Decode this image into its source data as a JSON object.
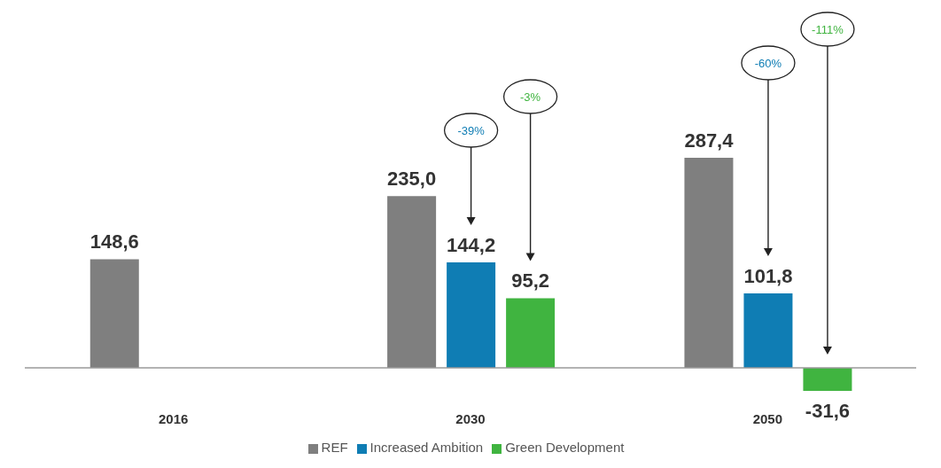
{
  "chart_data": {
    "type": "bar",
    "categories": [
      "2016",
      "2030",
      "2050"
    ],
    "series": [
      {
        "name": "REF",
        "color": "#7f7f7f",
        "values": [
          148.6,
          235.0,
          287.4
        ],
        "value_labels": [
          "148,6",
          "235,0",
          "287,4"
        ]
      },
      {
        "name": "Increased Ambition",
        "color": "#0f7db4",
        "values": [
          null,
          144.2,
          101.8
        ],
        "value_labels": [
          null,
          "144,2",
          "101,8"
        ]
      },
      {
        "name": "Green Development",
        "color": "#40b440",
        "values": [
          null,
          95.2,
          -31.6
        ],
        "value_labels": [
          null,
          "95,2",
          "-31,6"
        ]
      }
    ],
    "annotations": [
      "-39%",
      "-3%",
      "-60%",
      "-111%"
    ],
    "legend": "bottom",
    "grid": false
  }
}
